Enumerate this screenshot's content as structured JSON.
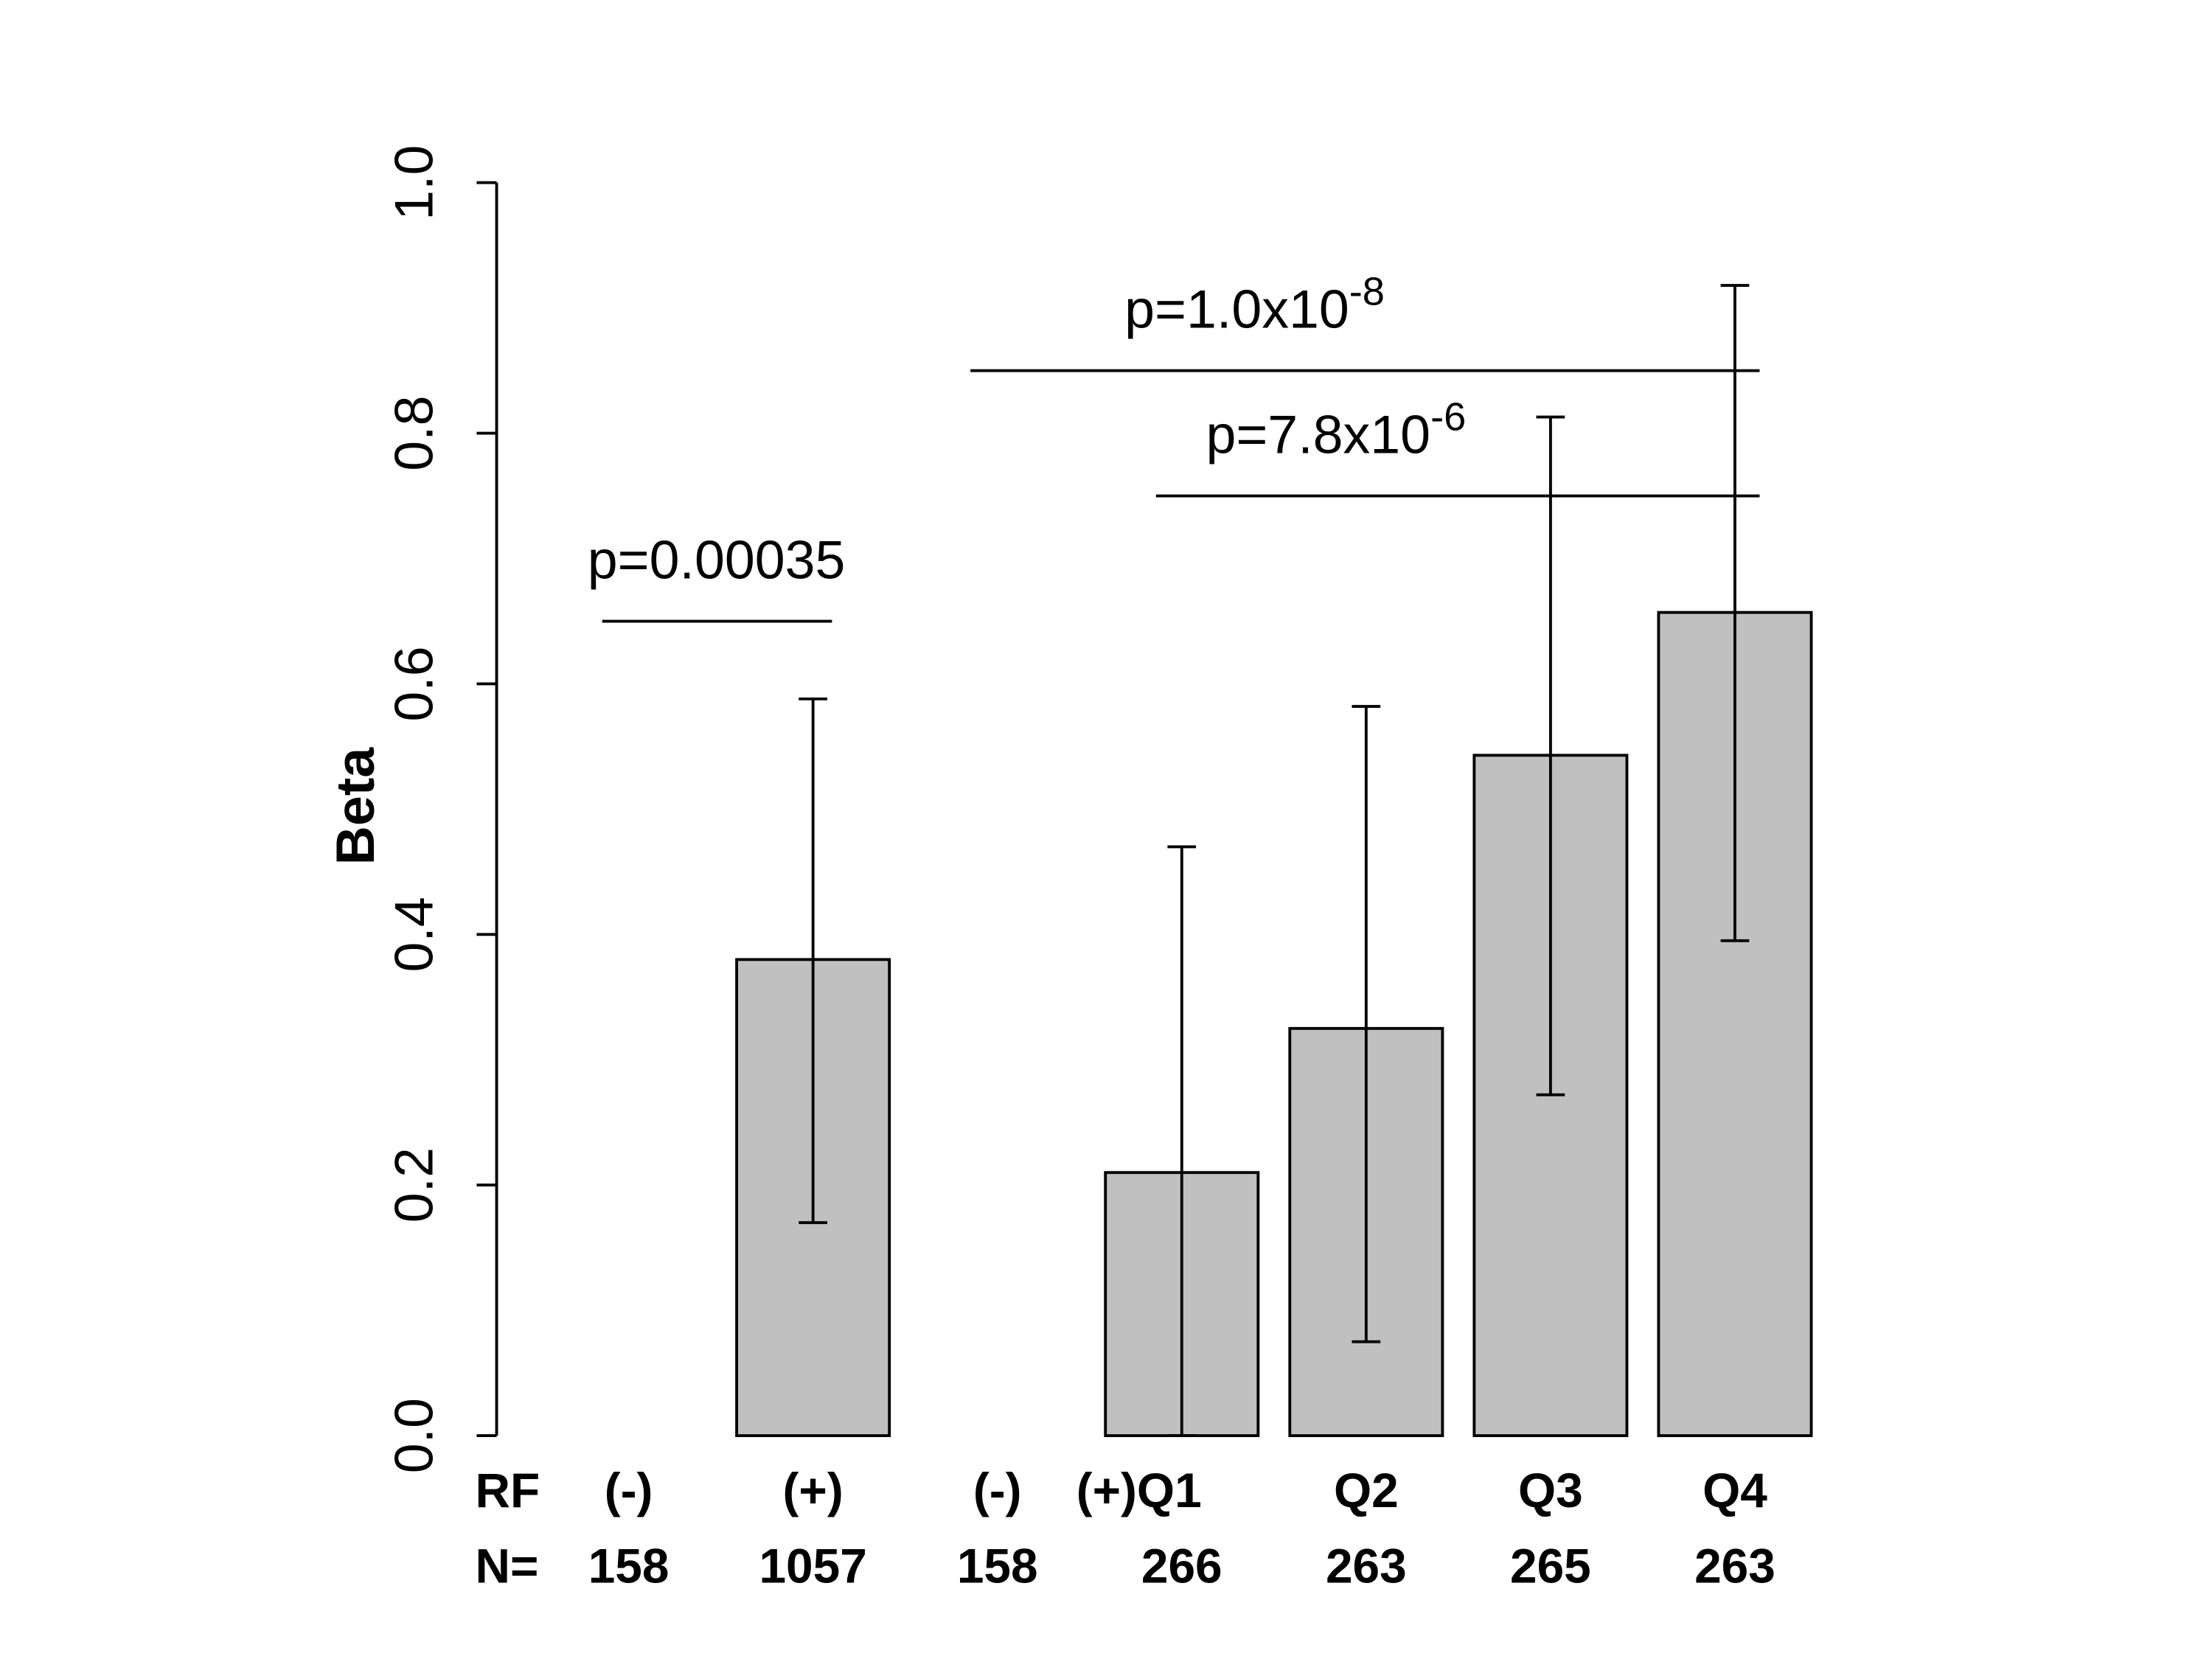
{
  "chart_data": {
    "type": "bar",
    "y_label": "Beta",
    "categories": [
      "(-)",
      "(+)",
      "(-)",
      "(+)Q1",
      "Q2",
      "Q3",
      "Q4"
    ],
    "row_label": "RF",
    "n_label": "N=",
    "n": [
      158,
      1057,
      158,
      266,
      263,
      265,
      263
    ],
    "values": [
      0,
      0.38,
      0,
      0.21,
      0.325,
      0.543,
      0.657
    ],
    "error_low": [
      null,
      0.17,
      null,
      0,
      0.075,
      0.272,
      0.395
    ],
    "error_high": [
      null,
      0.588,
      null,
      0.47,
      0.582,
      0.813,
      0.918
    ],
    "color": "#c0c0c0",
    "ylim": [
      0,
      1
    ],
    "yticks": [
      {
        "value": 0,
        "label": "0.0"
      },
      0.2,
      0.4,
      0.6,
      0.8,
      {
        "value": 1,
        "label": "1.0"
      }
    ],
    "annotations": [
      {
        "text": "p=0.00035",
        "y": 0.65
      },
      {
        "text": "p=1.0x10",
        "exponent": "-8",
        "y": 0.85
      },
      {
        "text": "p=7.8x10",
        "exponent": "-6",
        "y": 0.75
      }
    ]
  }
}
